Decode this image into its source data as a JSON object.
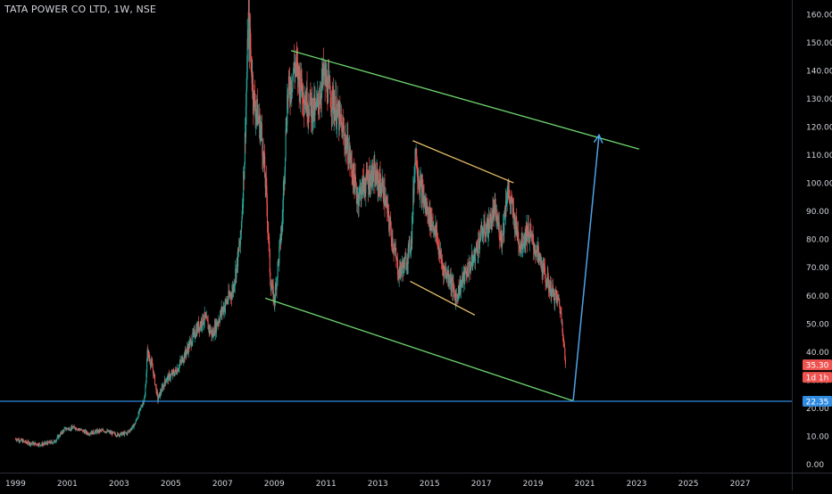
{
  "header": {
    "symbol_title": "TATA POWER CO LTD, 1W, NSE"
  },
  "colors": {
    "background": "#000000",
    "axis_text": "#d1d4dc",
    "axis_line": "#2a2e39",
    "candle_up": "#26a69a",
    "candle_down": "#ef5350",
    "channel_outer": "#6fd66f",
    "channel_inner": "#e6c06b",
    "arrow": "#4fa3e8",
    "support_line": "#2f8ae0",
    "price_badge": "#ef5350",
    "support_badge": "#2f8ae0"
  },
  "badges": {
    "last_price": "35.30",
    "countdown": "1d 1h",
    "support_level": "22.35"
  },
  "chart_data": {
    "type": "candlestick",
    "title": "TATA POWER CO LTD, 1W, NSE",
    "x_axis": {
      "type": "date",
      "range": [
        1998.4,
        2029.0
      ],
      "tick_labels": [
        "1999",
        "2001",
        "2003",
        "2005",
        "2007",
        "2009",
        "2011",
        "2013",
        "2015",
        "2017",
        "2019",
        "2021",
        "2023",
        "2025",
        "2027"
      ]
    },
    "y_axis": {
      "position": "right",
      "range": [
        -3,
        165
      ],
      "tick_values": [
        0,
        10,
        20,
        30,
        40,
        50,
        60,
        70,
        80,
        90,
        100,
        110,
        120,
        130,
        140,
        150,
        160
      ],
      "tick_labels": [
        "0.00",
        "10.00",
        "20.00",
        "30.00",
        "40.00",
        "50.00",
        "60.00",
        "70.00",
        "80.00",
        "90.00",
        "100.00",
        "110.00",
        "120.00",
        "130.00",
        "140.00",
        "150.00",
        "160.00"
      ]
    },
    "grid": false,
    "price_path": [
      [
        1999.0,
        9
      ],
      [
        1999.5,
        7.5
      ],
      [
        2000.0,
        7
      ],
      [
        2000.5,
        8
      ],
      [
        2000.9,
        12.5
      ],
      [
        2001.3,
        13
      ],
      [
        2001.8,
        11
      ],
      [
        2002.4,
        12
      ],
      [
        2002.9,
        10.5
      ],
      [
        2003.3,
        11
      ],
      [
        2003.6,
        14
      ],
      [
        2004.0,
        24
      ],
      [
        2004.1,
        40
      ],
      [
        2004.3,
        34
      ],
      [
        2004.5,
        23
      ],
      [
        2004.8,
        30
      ],
      [
        2005.2,
        33
      ],
      [
        2005.6,
        40
      ],
      [
        2006.0,
        48
      ],
      [
        2006.3,
        52
      ],
      [
        2006.6,
        46
      ],
      [
        2007.0,
        55
      ],
      [
        2007.4,
        62
      ],
      [
        2007.7,
        80
      ],
      [
        2007.85,
        110
      ],
      [
        2008.0,
        158
      ],
      [
        2008.2,
        130
      ],
      [
        2008.5,
        118
      ],
      [
        2008.7,
        95
      ],
      [
        2008.85,
        65
      ],
      [
        2009.0,
        58
      ],
      [
        2009.3,
        85
      ],
      [
        2009.5,
        130
      ],
      [
        2009.8,
        142
      ],
      [
        2010.2,
        130
      ],
      [
        2010.6,
        125
      ],
      [
        2010.9,
        138
      ],
      [
        2011.3,
        128
      ],
      [
        2011.6,
        120
      ],
      [
        2011.9,
        110
      ],
      [
        2012.2,
        95
      ],
      [
        2012.5,
        100
      ],
      [
        2012.8,
        103
      ],
      [
        2013.2,
        98
      ],
      [
        2013.4,
        88
      ],
      [
        2013.6,
        78
      ],
      [
        2013.8,
        68
      ],
      [
        2014.1,
        72
      ],
      [
        2014.3,
        80
      ],
      [
        2014.45,
        113
      ],
      [
        2014.6,
        100
      ],
      [
        2014.9,
        90
      ],
      [
        2015.2,
        84
      ],
      [
        2015.5,
        70
      ],
      [
        2015.8,
        66
      ],
      [
        2016.0,
        59
      ],
      [
        2016.3,
        66
      ],
      [
        2016.7,
        73
      ],
      [
        2017.0,
        82
      ],
      [
        2017.3,
        85
      ],
      [
        2017.5,
        90
      ],
      [
        2017.8,
        80
      ],
      [
        2018.0,
        98
      ],
      [
        2018.2,
        90
      ],
      [
        2018.5,
        78
      ],
      [
        2018.8,
        83
      ],
      [
        2019.2,
        74
      ],
      [
        2019.5,
        66
      ],
      [
        2019.8,
        60
      ],
      [
        2020.0,
        58
      ],
      [
        2020.15,
        48
      ],
      [
        2020.25,
        35.3
      ]
    ],
    "annotations": [
      {
        "kind": "trend_line",
        "role": "outer_channel_upper",
        "points": [
          [
            2009.65,
            147
          ],
          [
            2023.1,
            112
          ]
        ]
      },
      {
        "kind": "trend_line",
        "role": "outer_channel_lower",
        "points": [
          [
            2008.65,
            59
          ],
          [
            2020.55,
            22.5
          ]
        ]
      },
      {
        "kind": "trend_line",
        "role": "inner_channel_upper",
        "points": [
          [
            2014.35,
            115
          ],
          [
            2018.25,
            100
          ]
        ]
      },
      {
        "kind": "trend_line",
        "role": "inner_channel_lower",
        "points": [
          [
            2014.25,
            65
          ],
          [
            2016.75,
            53
          ]
        ]
      },
      {
        "kind": "arrow",
        "points": [
          [
            2020.55,
            22.5
          ],
          [
            2021.55,
            117
          ]
        ]
      },
      {
        "kind": "horizontal_line",
        "value": 22.35
      }
    ]
  }
}
